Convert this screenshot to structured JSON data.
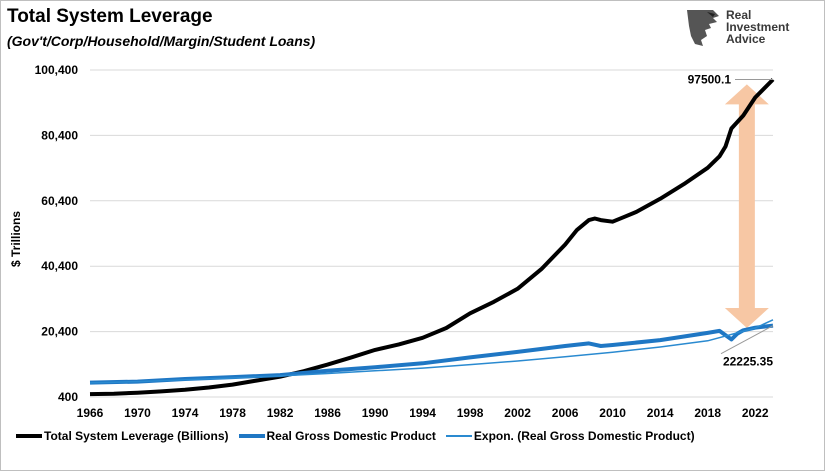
{
  "title": "Total System Leverage",
  "subtitle": "(Gov't/Corp/Household/Margin/Student Loans)",
  "logo": {
    "line1": "Real",
    "line2": "Investment",
    "line3": "Advice"
  },
  "chart_data": {
    "type": "line",
    "title": "Total System Leverage",
    "subtitle": "(Gov't/Corp/Household/Margin/Student Loans)",
    "ylabel": "$ Trillions",
    "xlabel": "",
    "ylim": [
      400,
      100400
    ],
    "yticks": [
      "100,400",
      "80,400",
      "60,400",
      "40,400",
      "20,400",
      "400"
    ],
    "ytick_values": [
      100400,
      80400,
      60400,
      40400,
      20400,
      400
    ],
    "xlim": [
      1966,
      2023.5
    ],
    "xticks": [
      "1966",
      "1970",
      "1974",
      "1978",
      "1982",
      "1986",
      "1990",
      "1994",
      "1998",
      "2002",
      "2006",
      "2010",
      "2014",
      "2018",
      "2022"
    ],
    "grid": true,
    "legend_position": "bottom",
    "series": [
      {
        "name": "Total System Leverage (Billions)",
        "color": "#000000",
        "x": [
          1966,
          1968,
          1970,
          1972,
          1974,
          1976,
          1978,
          1980,
          1982,
          1984,
          1986,
          1988,
          1990,
          1992,
          1994,
          1996,
          1998,
          2000,
          2002,
          2004,
          2006,
          2007,
          2008,
          2008.5,
          2009,
          2010,
          2011,
          2012,
          2014,
          2016,
          2018,
          2019,
          2019.5,
          2020,
          2021,
          2022,
          2023.5
        ],
        "values": [
          1300,
          1400,
          1700,
          2100,
          2600,
          3300,
          4200,
          5400,
          6600,
          8300,
          10300,
          12500,
          14800,
          16500,
          18500,
          21500,
          26000,
          29500,
          33500,
          39500,
          47000,
          51500,
          54500,
          55000,
          54500,
          54000,
          55500,
          57000,
          61000,
          65500,
          70500,
          74000,
          77000,
          82500,
          86500,
          92000,
          97500
        ]
      },
      {
        "name": "Real Gross Domestic Product",
        "color": "#1f77c4",
        "x": [
          1966,
          1970,
          1974,
          1978,
          1982,
          1986,
          1990,
          1994,
          1998,
          2002,
          2006,
          2008,
          2009,
          2010,
          2014,
          2018,
          2019,
          2020,
          2020.5,
          2021,
          2022,
          2023.5
        ],
        "values": [
          4800,
          5100,
          5900,
          6500,
          7100,
          8400,
          9500,
          10700,
          12500,
          14200,
          16000,
          16800,
          16000,
          16300,
          17800,
          20000,
          20600,
          18000,
          19800,
          20800,
          21600,
          22225
        ]
      },
      {
        "name": "Expon. (Real Gross Domestic Product)",
        "color": "#2a8ad0",
        "x": [
          1966,
          1970,
          1974,
          1978,
          1982,
          1986,
          1990,
          1994,
          1998,
          2002,
          2006,
          2010,
          2014,
          2018,
          2022,
          2023.5
        ],
        "values": [
          4700,
          5100,
          5650,
          6200,
          6850,
          7600,
          8400,
          9250,
          10300,
          11400,
          12700,
          14100,
          15700,
          17600,
          21500,
          24000
        ]
      }
    ],
    "annotations": [
      {
        "text": "97500.1",
        "x": 2023.5,
        "y": 97500
      },
      {
        "text": "22225.35",
        "x": 2023.5,
        "y": 22225
      }
    ],
    "arrow": {
      "color": "#f7c7a4",
      "from_y": 21500,
      "to_y": 96000,
      "x": 2021.3
    }
  }
}
